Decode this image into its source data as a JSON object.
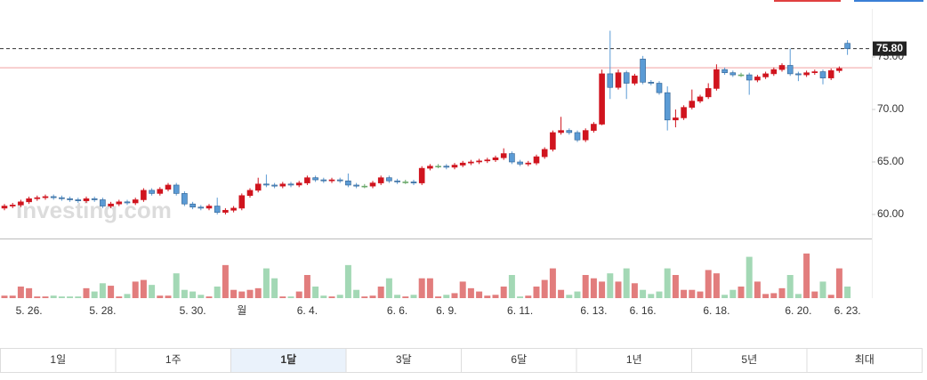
{
  "chart_data": {
    "type": "candlestick",
    "watermark": "Investing.com",
    "categories": [
      null,
      null,
      null,
      "5. 26.",
      null,
      null,
      null,
      null,
      null,
      null,
      null,
      null,
      "5. 28.",
      null,
      null,
      null,
      null,
      null,
      null,
      null,
      null,
      null,
      null,
      "5. 30.",
      null,
      null,
      null,
      null,
      null,
      "월",
      null,
      null,
      null,
      null,
      null,
      null,
      null,
      "6. 4.",
      null,
      null,
      null,
      null,
      null,
      null,
      null,
      null,
      null,
      null,
      "6. 6.",
      null,
      null,
      null,
      null,
      null,
      "6. 9.",
      null,
      null,
      null,
      null,
      null,
      null,
      null,
      null,
      "6. 11.",
      null,
      null,
      null,
      null,
      null,
      null,
      null,
      null,
      "6. 13.",
      null,
      null,
      null,
      null,
      null,
      "6. 16.",
      null,
      null,
      null,
      null,
      null,
      null,
      null,
      null,
      "6. 18.",
      null,
      null,
      null,
      null,
      null,
      null,
      null,
      null,
      null,
      "6. 20.",
      null,
      null,
      null,
      null,
      null,
      "6. 23."
    ],
    "open": [
      60.6,
      60.8,
      60.9,
      61.2,
      61.5,
      61.6,
      61.7,
      61.6,
      61.5,
      61.4,
      61.3,
      61.5,
      61.4,
      60.8,
      61.0,
      61.2,
      61.1,
      61.4,
      62.3,
      62.0,
      62.4,
      62.8,
      62.0,
      61.0,
      60.7,
      60.6,
      60.8,
      60.2,
      60.4,
      60.6,
      61.8,
      62.3,
      62.9,
      62.8,
      62.7,
      62.9,
      62.8,
      63.0,
      63.5,
      63.3,
      63.2,
      63.3,
      63.2,
      62.8,
      62.7,
      62.7,
      63.0,
      63.5,
      63.2,
      63.1,
      63.1,
      63.0,
      64.4,
      64.6,
      64.6,
      64.5,
      64.7,
      64.9,
      65.0,
      65.1,
      65.2,
      65.4,
      65.8,
      65.0,
      64.8,
      64.9,
      65.5,
      66.2,
      67.8,
      68.0,
      67.8,
      67.1,
      68.0,
      68.6,
      73.4,
      72.1,
      73.5,
      72.5,
      74.8,
      72.6,
      72.5,
      71.6,
      69.0,
      69.2,
      70.2,
      70.8,
      71.2,
      72.0,
      73.8,
      73.5,
      73.3,
      73.3,
      72.8,
      73.1,
      73.4,
      73.8,
      74.2,
      73.4,
      73.3,
      73.5,
      73.6,
      73.0,
      73.7,
      76.3
    ],
    "high": [
      61.0,
      61.1,
      61.4,
      61.7,
      61.8,
      61.9,
      61.9,
      61.8,
      61.7,
      61.6,
      61.7,
      61.7,
      61.6,
      61.2,
      61.4,
      61.4,
      61.6,
      62.5,
      62.5,
      62.6,
      63.0,
      63.0,
      62.2,
      61.2,
      60.9,
      61.0,
      61.6,
      60.6,
      60.8,
      62.0,
      62.5,
      63.5,
      63.8,
      63.0,
      63.1,
      63.1,
      63.2,
      63.7,
      63.7,
      63.5,
      63.5,
      63.5,
      63.9,
      63.0,
      62.9,
      63.2,
      63.7,
      63.7,
      63.4,
      63.3,
      63.3,
      64.6,
      64.8,
      64.8,
      64.8,
      64.9,
      65.1,
      65.2,
      65.3,
      65.4,
      65.6,
      66.3,
      66.0,
      65.2,
      65.1,
      65.7,
      66.4,
      68.0,
      69.3,
      68.2,
      68.0,
      68.2,
      68.8,
      73.8,
      77.5,
      73.8,
      73.7,
      73.4,
      75.1,
      72.8,
      72.7,
      72.2,
      70.0,
      70.4,
      71.9,
      71.4,
      72.5,
      74.3,
      74.0,
      73.7,
      73.5,
      73.5,
      73.3,
      73.6,
      74.0,
      74.4,
      75.8,
      73.6,
      73.7,
      73.8,
      73.8,
      73.9,
      74.1,
      76.6
    ],
    "low": [
      60.4,
      60.6,
      60.7,
      61.0,
      61.3,
      61.4,
      61.4,
      61.3,
      61.2,
      61.1,
      61.1,
      61.2,
      60.6,
      60.6,
      60.8,
      60.9,
      60.9,
      61.2,
      61.8,
      61.8,
      62.2,
      61.8,
      60.8,
      60.5,
      60.4,
      60.4,
      60.0,
      60.0,
      60.2,
      60.4,
      61.6,
      62.1,
      62.6,
      62.5,
      62.5,
      62.6,
      62.6,
      62.8,
      63.1,
      63.0,
      63.0,
      63.0,
      62.6,
      62.5,
      62.5,
      62.5,
      62.8,
      63.0,
      62.9,
      62.9,
      62.8,
      62.8,
      64.2,
      64.4,
      64.3,
      64.3,
      64.5,
      64.7,
      64.8,
      64.9,
      65.0,
      65.2,
      64.8,
      64.6,
      64.6,
      64.7,
      65.3,
      66.0,
      67.6,
      67.6,
      66.9,
      66.9,
      67.8,
      68.5,
      71.0,
      71.9,
      71.0,
      72.3,
      72.4,
      72.3,
      71.4,
      68.0,
      68.3,
      69.0,
      70.0,
      70.6,
      71.0,
      71.8,
      73.3,
      73.1,
      73.1,
      71.4,
      72.6,
      72.9,
      73.2,
      73.6,
      73.2,
      72.7,
      73.1,
      73.3,
      72.4,
      72.8,
      73.5,
      75.2
    ],
    "close": [
      60.8,
      60.9,
      61.2,
      61.5,
      61.6,
      61.7,
      61.6,
      61.5,
      61.4,
      61.3,
      61.5,
      61.4,
      60.8,
      61.0,
      61.2,
      61.1,
      61.4,
      62.3,
      62.0,
      62.4,
      62.8,
      62.0,
      61.0,
      60.7,
      60.6,
      60.8,
      60.2,
      60.4,
      60.6,
      61.8,
      62.3,
      62.9,
      62.8,
      62.7,
      62.9,
      62.8,
      63.0,
      63.5,
      63.3,
      63.2,
      63.3,
      63.2,
      62.8,
      62.7,
      62.7,
      63.0,
      63.5,
      63.2,
      63.1,
      63.1,
      63.0,
      64.4,
      64.6,
      64.6,
      64.5,
      64.7,
      64.9,
      65.0,
      65.1,
      65.2,
      65.4,
      65.8,
      65.0,
      64.8,
      64.9,
      65.5,
      66.2,
      67.8,
      68.0,
      67.8,
      67.1,
      68.0,
      68.6,
      73.4,
      72.1,
      73.5,
      72.5,
      73.2,
      72.6,
      72.5,
      71.6,
      69.0,
      69.2,
      70.2,
      70.8,
      71.2,
      72.0,
      73.8,
      73.5,
      73.3,
      73.3,
      72.8,
      73.1,
      73.4,
      73.8,
      74.2,
      73.4,
      73.3,
      73.5,
      73.6,
      73.0,
      73.7,
      73.9,
      75.8
    ],
    "volume": [
      3,
      3,
      14,
      12,
      2,
      2,
      3,
      2,
      2,
      2,
      12,
      8,
      18,
      15,
      2,
      5,
      20,
      22,
      16,
      3,
      3,
      30,
      10,
      8,
      4,
      2,
      14,
      40,
      10,
      8,
      10,
      12,
      36,
      24,
      2,
      2,
      8,
      28,
      14,
      3,
      2,
      4,
      40,
      10,
      2,
      3,
      14,
      24,
      4,
      2,
      4,
      24,
      24,
      2,
      4,
      6,
      20,
      12,
      8,
      3,
      4,
      14,
      28,
      2,
      3,
      14,
      22,
      36,
      10,
      4,
      8,
      28,
      24,
      20,
      30,
      20,
      36,
      18,
      10,
      5,
      8,
      36,
      28,
      10,
      10,
      8,
      34,
      30,
      4,
      10,
      14,
      50,
      20,
      5,
      6,
      12,
      28,
      5,
      54,
      8,
      20,
      4,
      36,
      14
    ],
    "volume_ylim": [
      0,
      70
    ],
    "ylim": [
      57.71,
      79.58
    ],
    "yticks": [
      {
        "value": 60,
        "label": "60.00"
      },
      {
        "value": 65,
        "label": "65.00"
      },
      {
        "value": 70,
        "label": "70.00"
      },
      {
        "value": 75,
        "label": "75.00"
      }
    ],
    "last_price": {
      "value": 75.8,
      "label": "75.80"
    },
    "reference_line": 73.98,
    "up_color": "#d0141e",
    "down_color": "#5b9bd5",
    "volume_up_color": "#e27d7d",
    "volume_down_color": "#a3d8b5"
  },
  "tabs": [
    "1일",
    "1주",
    "1달",
    "3달",
    "6달",
    "1년",
    "5년",
    "최대"
  ],
  "selected_tab": 2
}
